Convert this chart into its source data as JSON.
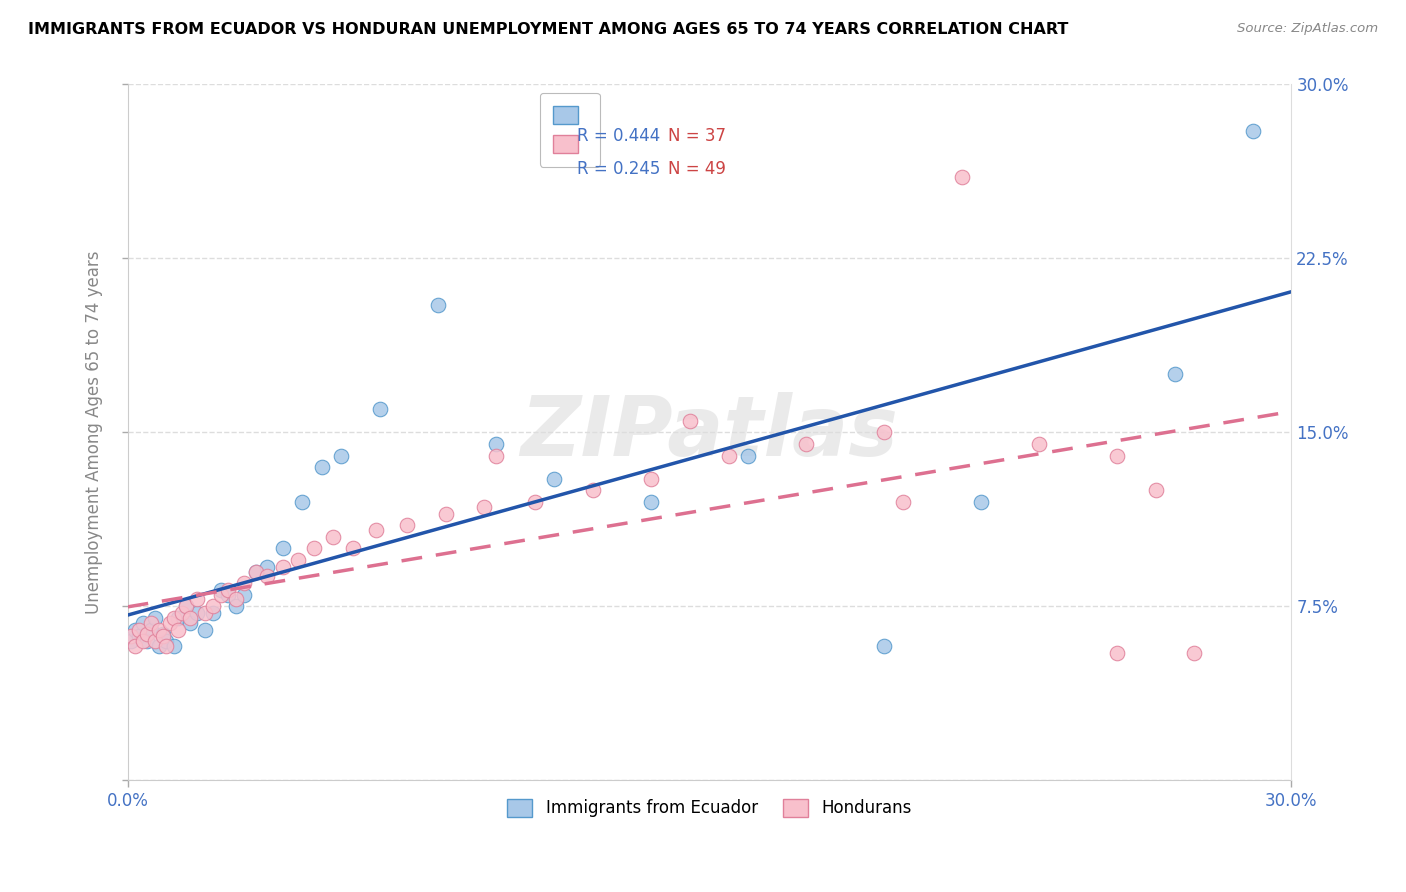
{
  "title": "IMMIGRANTS FROM ECUADOR VS HONDURAN UNEMPLOYMENT AMONG AGES 65 TO 74 YEARS CORRELATION CHART",
  "source": "Source: ZipAtlas.com",
  "ylabel": "Unemployment Among Ages 65 to 74 years",
  "xlim": [
    0,
    0.3
  ],
  "ylim": [
    0,
    0.3
  ],
  "ecuador_color": "#a8c8e8",
  "ecuador_edge": "#5599cc",
  "honduras_color": "#f8c0cc",
  "honduras_edge": "#e0809a",
  "regression_ecuador_color": "#2255aa",
  "regression_honduras_color": "#dd7090",
  "regression_honduras_dash": [
    6,
    4
  ],
  "watermark_text": "ZIPatlas",
  "watermark_color": "#dddddd",
  "tick_color": "#4472c4",
  "ylabel_color": "#888888",
  "grid_color": "#dddddd",
  "legend1_r": "R = 0.444",
  "legend1_n": "N = 37",
  "legend2_r": "R = 0.245",
  "legend2_n": "N = 49",
  "legend_r_color": "#4472c4",
  "legend_n_color": "#cc4444",
  "ecuador_x": [
    0.001,
    0.002,
    0.003,
    0.004,
    0.005,
    0.006,
    0.007,
    0.008,
    0.009,
    0.01,
    0.012,
    0.013,
    0.015,
    0.016,
    0.018,
    0.02,
    0.022,
    0.024,
    0.026,
    0.028,
    0.03,
    0.033,
    0.036,
    0.04,
    0.045,
    0.05,
    0.055,
    0.065,
    0.08,
    0.095,
    0.11,
    0.135,
    0.16,
    0.195,
    0.22,
    0.27,
    0.29
  ],
  "ecuador_y": [
    0.06,
    0.065,
    0.062,
    0.068,
    0.06,
    0.065,
    0.07,
    0.058,
    0.063,
    0.06,
    0.058,
    0.07,
    0.075,
    0.068,
    0.072,
    0.065,
    0.072,
    0.082,
    0.08,
    0.075,
    0.08,
    0.09,
    0.092,
    0.1,
    0.12,
    0.135,
    0.14,
    0.16,
    0.205,
    0.145,
    0.13,
    0.12,
    0.14,
    0.058,
    0.12,
    0.175,
    0.28
  ],
  "honduras_x": [
    0.001,
    0.002,
    0.003,
    0.004,
    0.005,
    0.006,
    0.007,
    0.008,
    0.009,
    0.01,
    0.011,
    0.012,
    0.013,
    0.014,
    0.015,
    0.016,
    0.018,
    0.02,
    0.022,
    0.024,
    0.026,
    0.028,
    0.03,
    0.033,
    0.036,
    0.04,
    0.044,
    0.048,
    0.053,
    0.058,
    0.064,
    0.072,
    0.082,
    0.092,
    0.105,
    0.12,
    0.135,
    0.155,
    0.175,
    0.195,
    0.215,
    0.235,
    0.255,
    0.275,
    0.255,
    0.2,
    0.145,
    0.095,
    0.265
  ],
  "honduras_y": [
    0.062,
    0.058,
    0.065,
    0.06,
    0.063,
    0.068,
    0.06,
    0.065,
    0.062,
    0.058,
    0.068,
    0.07,
    0.065,
    0.072,
    0.075,
    0.07,
    0.078,
    0.072,
    0.075,
    0.08,
    0.082,
    0.078,
    0.085,
    0.09,
    0.088,
    0.092,
    0.095,
    0.1,
    0.105,
    0.1,
    0.108,
    0.11,
    0.115,
    0.118,
    0.12,
    0.125,
    0.13,
    0.14,
    0.145,
    0.15,
    0.26,
    0.145,
    0.055,
    0.055,
    0.14,
    0.12,
    0.155,
    0.14,
    0.125
  ]
}
